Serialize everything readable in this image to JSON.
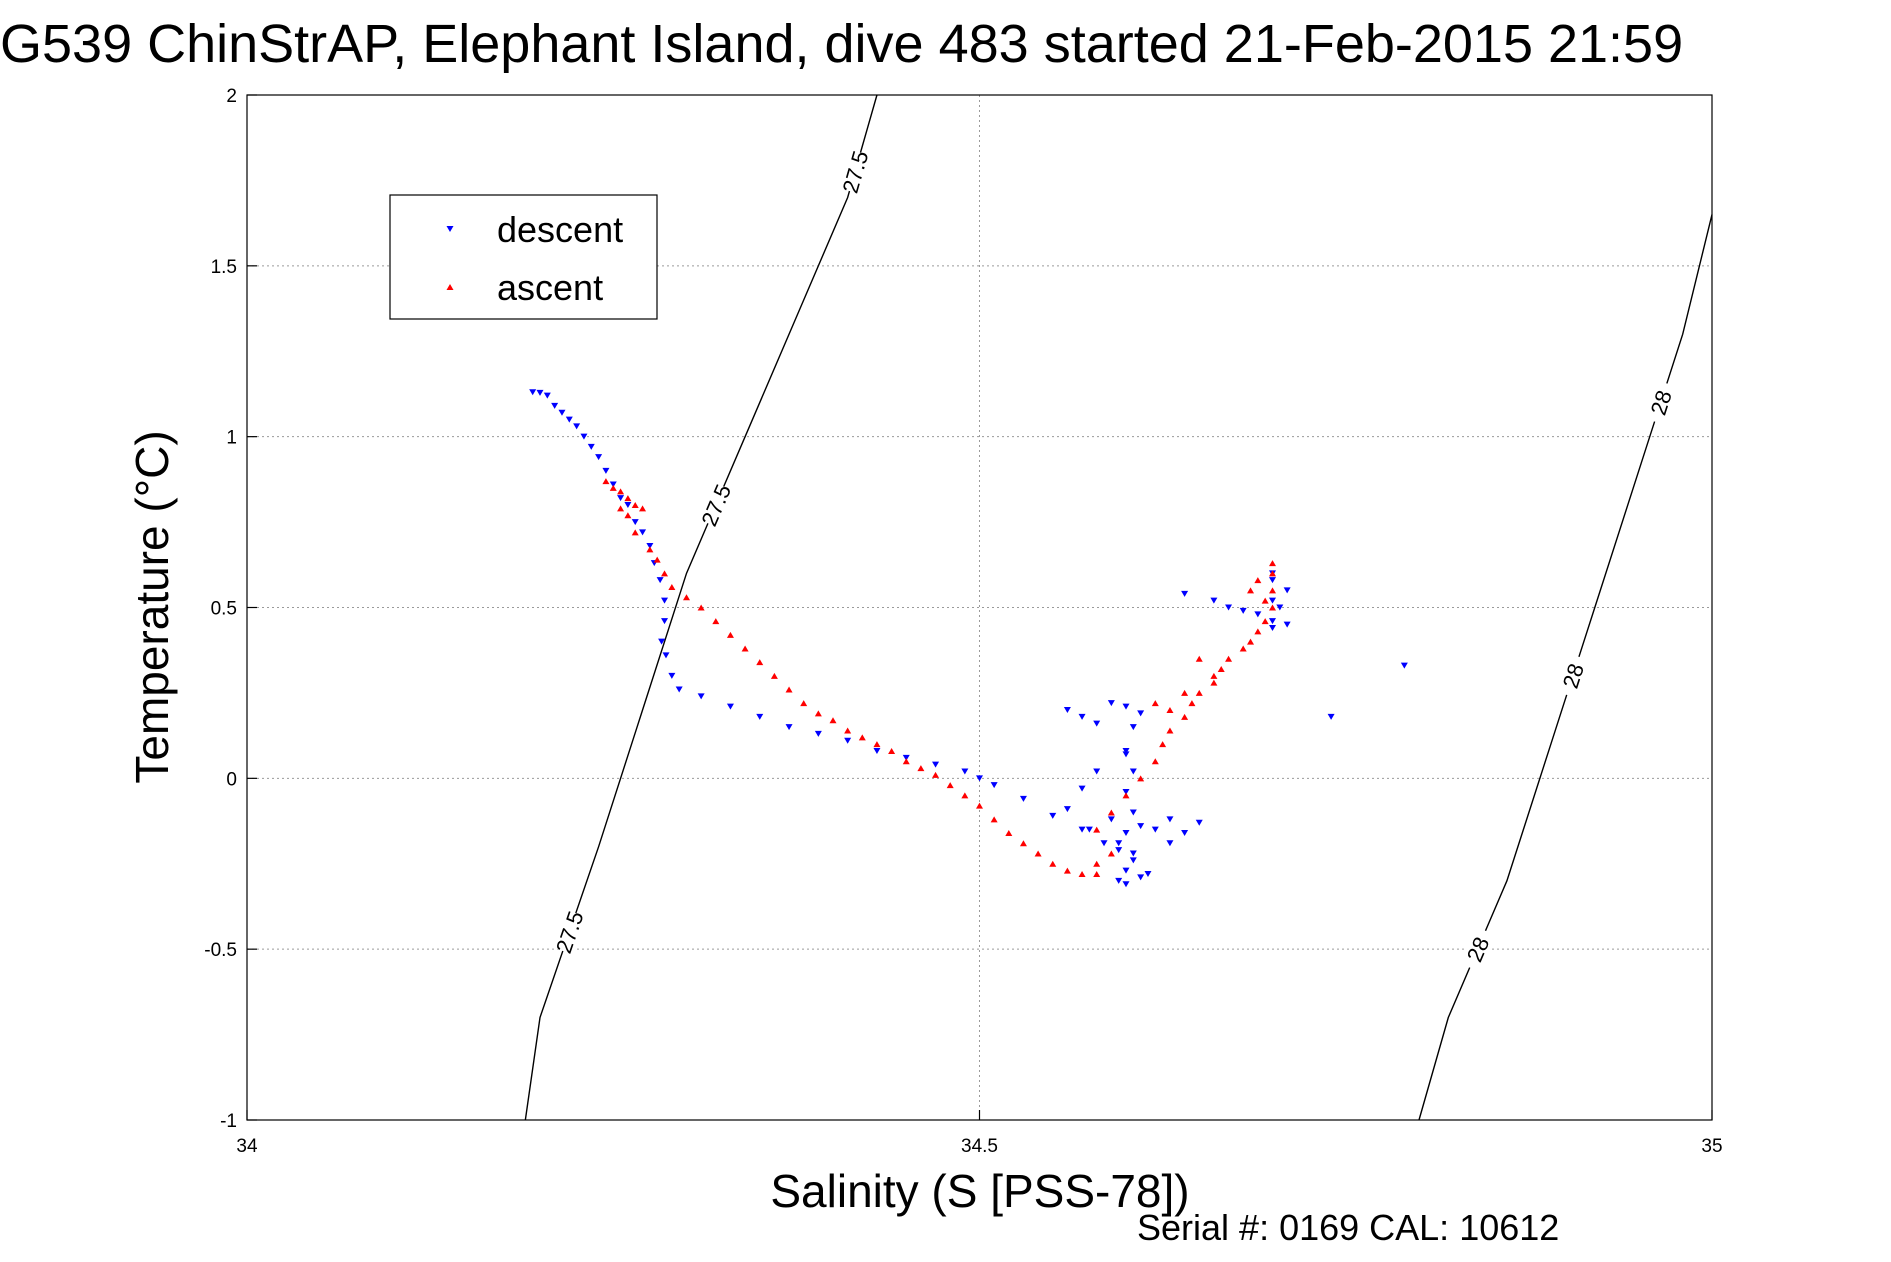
{
  "chart_data": {
    "type": "scatter",
    "title": "G539 ChinStrAP, Elephant Island, dive 483 started 21-Feb-2015 21:59",
    "xlabel": "Salinity (S [PSS-78])",
    "ylabel": "Temperature (°C)",
    "footnote": "Serial #: 0169 CAL: 10612",
    "xlim": [
      34,
      35
    ],
    "ylim": [
      -1,
      2
    ],
    "xticks": [
      "34",
      "34.5",
      "35"
    ],
    "yticks": [
      "-1",
      "-0.5",
      "0",
      "0.5",
      "1",
      "1.5",
      "2"
    ],
    "grid": true,
    "legend": {
      "placement": "top-left"
    },
    "series": [
      {
        "name": "descent",
        "color": "#0000ff",
        "marker": "triangle-down",
        "points": [
          [
            34.195,
            1.13
          ],
          [
            34.2,
            1.128
          ],
          [
            34.205,
            1.12
          ],
          [
            34.21,
            1.09
          ],
          [
            34.215,
            1.07
          ],
          [
            34.22,
            1.05
          ],
          [
            34.225,
            1.03
          ],
          [
            34.23,
            1.0
          ],
          [
            34.235,
            0.97
          ],
          [
            34.24,
            0.94
          ],
          [
            34.245,
            0.9
          ],
          [
            34.25,
            0.86
          ],
          [
            34.255,
            0.82
          ],
          [
            34.26,
            0.8
          ],
          [
            34.265,
            0.75
          ],
          [
            34.27,
            0.72
          ],
          [
            34.275,
            0.68
          ],
          [
            34.278,
            0.63
          ],
          [
            34.282,
            0.58
          ],
          [
            34.285,
            0.52
          ],
          [
            34.285,
            0.46
          ],
          [
            34.283,
            0.4
          ],
          [
            34.286,
            0.36
          ],
          [
            34.29,
            0.3
          ],
          [
            34.295,
            0.26
          ],
          [
            34.31,
            0.24
          ],
          [
            34.33,
            0.21
          ],
          [
            34.35,
            0.18
          ],
          [
            34.37,
            0.15
          ],
          [
            34.39,
            0.13
          ],
          [
            34.41,
            0.11
          ],
          [
            34.43,
            0.08
          ],
          [
            34.45,
            0.06
          ],
          [
            34.47,
            0.04
          ],
          [
            34.49,
            0.02
          ],
          [
            34.5,
            0.0
          ],
          [
            34.51,
            -0.02
          ],
          [
            34.53,
            -0.06
          ],
          [
            34.55,
            -0.11
          ],
          [
            34.57,
            -0.15
          ],
          [
            34.585,
            -0.19
          ],
          [
            34.595,
            -0.21
          ],
          [
            34.56,
            -0.09
          ],
          [
            34.57,
            -0.03
          ],
          [
            34.58,
            0.02
          ],
          [
            34.6,
            0.07
          ],
          [
            34.59,
            -0.12
          ],
          [
            34.575,
            -0.15
          ],
          [
            34.56,
            0.2
          ],
          [
            34.57,
            0.18
          ],
          [
            34.58,
            0.16
          ],
          [
            34.59,
            0.22
          ],
          [
            34.6,
            0.21
          ],
          [
            34.61,
            0.19
          ],
          [
            34.605,
            0.15
          ],
          [
            34.6,
            0.08
          ],
          [
            34.605,
            0.02
          ],
          [
            34.6,
            -0.04
          ],
          [
            34.605,
            -0.1
          ],
          [
            34.6,
            -0.16
          ],
          [
            34.605,
            -0.22
          ],
          [
            34.6,
            -0.27
          ],
          [
            34.595,
            -0.3
          ],
          [
            34.61,
            -0.29
          ],
          [
            34.605,
            -0.24
          ],
          [
            34.595,
            -0.19
          ],
          [
            34.61,
            -0.14
          ],
          [
            34.62,
            -0.15
          ],
          [
            34.63,
            -0.12
          ],
          [
            34.64,
            -0.16
          ],
          [
            34.65,
            -0.13
          ],
          [
            34.63,
            -0.19
          ],
          [
            34.6,
            -0.31
          ],
          [
            34.615,
            -0.28
          ],
          [
            34.64,
            0.54
          ],
          [
            34.66,
            0.52
          ],
          [
            34.67,
            0.5
          ],
          [
            34.68,
            0.49
          ],
          [
            34.69,
            0.48
          ],
          [
            34.7,
            0.46
          ],
          [
            34.7,
            0.52
          ],
          [
            34.7,
            0.58
          ],
          [
            34.7,
            0.6
          ],
          [
            34.7,
            0.44
          ],
          [
            34.71,
            0.45
          ],
          [
            34.71,
            0.55
          ],
          [
            34.705,
            0.5
          ],
          [
            34.74,
            0.18
          ],
          [
            34.79,
            0.33
          ]
        ]
      },
      {
        "name": "ascent",
        "color": "#ff0000",
        "marker": "triangle-up",
        "points": [
          [
            34.245,
            0.87
          ],
          [
            34.25,
            0.85
          ],
          [
            34.255,
            0.84
          ],
          [
            34.26,
            0.82
          ],
          [
            34.265,
            0.8
          ],
          [
            34.26,
            0.77
          ],
          [
            34.255,
            0.79
          ],
          [
            34.27,
            0.79
          ],
          [
            34.265,
            0.72
          ],
          [
            34.275,
            0.67
          ],
          [
            34.28,
            0.64
          ],
          [
            34.285,
            0.6
          ],
          [
            34.29,
            0.56
          ],
          [
            34.3,
            0.53
          ],
          [
            34.31,
            0.5
          ],
          [
            34.32,
            0.46
          ],
          [
            34.33,
            0.42
          ],
          [
            34.34,
            0.38
          ],
          [
            34.35,
            0.34
          ],
          [
            34.36,
            0.3
          ],
          [
            34.37,
            0.26
          ],
          [
            34.38,
            0.22
          ],
          [
            34.39,
            0.19
          ],
          [
            34.4,
            0.17
          ],
          [
            34.41,
            0.14
          ],
          [
            34.42,
            0.12
          ],
          [
            34.43,
            0.1
          ],
          [
            34.44,
            0.08
          ],
          [
            34.45,
            0.05
          ],
          [
            34.46,
            0.03
          ],
          [
            34.47,
            0.01
          ],
          [
            34.48,
            -0.02
          ],
          [
            34.49,
            -0.05
          ],
          [
            34.5,
            -0.08
          ],
          [
            34.51,
            -0.12
          ],
          [
            34.52,
            -0.16
          ],
          [
            34.53,
            -0.19
          ],
          [
            34.54,
            -0.22
          ],
          [
            34.55,
            -0.25
          ],
          [
            34.56,
            -0.27
          ],
          [
            34.57,
            -0.28
          ],
          [
            34.58,
            -0.28
          ],
          [
            34.58,
            -0.25
          ],
          [
            34.59,
            -0.22
          ],
          [
            34.58,
            -0.15
          ],
          [
            34.59,
            -0.1
          ],
          [
            34.6,
            -0.05
          ],
          [
            34.61,
            0.0
          ],
          [
            34.62,
            0.05
          ],
          [
            34.625,
            0.1
          ],
          [
            34.63,
            0.14
          ],
          [
            34.64,
            0.18
          ],
          [
            34.645,
            0.22
          ],
          [
            34.65,
            0.25
          ],
          [
            34.66,
            0.28
          ],
          [
            34.665,
            0.32
          ],
          [
            34.67,
            0.35
          ],
          [
            34.68,
            0.38
          ],
          [
            34.685,
            0.4
          ],
          [
            34.69,
            0.43
          ],
          [
            34.695,
            0.46
          ],
          [
            34.7,
            0.5
          ],
          [
            34.7,
            0.55
          ],
          [
            34.7,
            0.6
          ],
          [
            34.7,
            0.63
          ],
          [
            34.69,
            0.58
          ],
          [
            34.685,
            0.55
          ],
          [
            34.695,
            0.52
          ],
          [
            34.62,
            0.22
          ],
          [
            34.63,
            0.2
          ],
          [
            34.64,
            0.25
          ],
          [
            34.66,
            0.3
          ],
          [
            34.65,
            0.35
          ]
        ]
      }
    ],
    "contours": [
      {
        "label": "27.5",
        "points": [
          [
            34.19,
            -1.0
          ],
          [
            34.2,
            -0.7
          ],
          [
            34.24,
            -0.2
          ],
          [
            34.27,
            0.2
          ],
          [
            34.3,
            0.6
          ],
          [
            34.34,
            1.0
          ],
          [
            34.38,
            1.4
          ],
          [
            34.41,
            1.7
          ],
          [
            34.42,
            1.85
          ],
          [
            34.43,
            2.0
          ]
        ]
      },
      {
        "label": "28",
        "points": [
          [
            34.8,
            -1.0
          ],
          [
            34.82,
            -0.7
          ],
          [
            34.86,
            -0.3
          ],
          [
            34.89,
            0.1
          ],
          [
            34.92,
            0.5
          ],
          [
            34.95,
            0.9
          ],
          [
            34.98,
            1.3
          ],
          [
            35.0,
            1.65
          ]
        ]
      }
    ]
  }
}
